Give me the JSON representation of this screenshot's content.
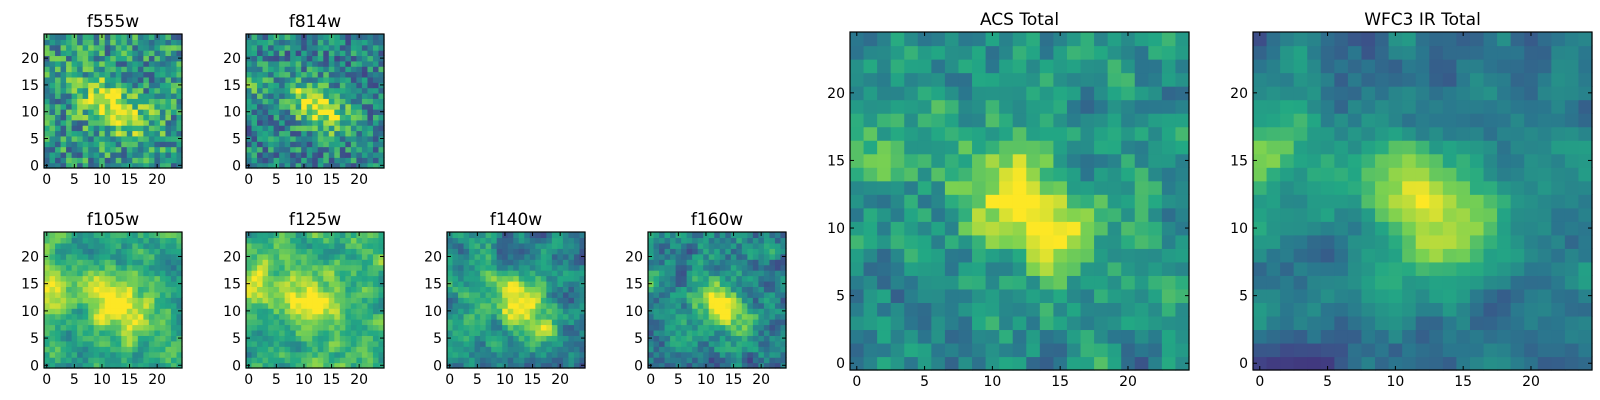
{
  "colormap": "viridis",
  "colors": {
    "cmap_stops": [
      "#440154",
      "#414487",
      "#2a788e",
      "#22a884",
      "#7ad151",
      "#fde725"
    ],
    "frame": "#000000",
    "background": "#ffffff"
  },
  "chart_data": [
    {
      "type": "heatmap",
      "title": "f555w",
      "grid_size": 25,
      "xlim": [
        0,
        24
      ],
      "ylim": [
        0,
        24
      ],
      "xticks": [
        0,
        5,
        10,
        15,
        20
      ],
      "yticks": [
        0,
        5,
        10,
        15,
        20
      ],
      "source": {
        "x": 12,
        "y": 11,
        "amplitude": 0.45,
        "width": 2.8,
        "elong": 1.8,
        "angle_deg": -35
      },
      "edge_blob": null,
      "noise": 0.55,
      "corr": 0.0,
      "seed": 11,
      "bias": 0.52
    },
    {
      "type": "heatmap",
      "title": "f814w",
      "grid_size": 25,
      "xlim": [
        0,
        24
      ],
      "ylim": [
        0,
        24
      ],
      "xticks": [
        0,
        5,
        10,
        15,
        20
      ],
      "yticks": [
        0,
        5,
        10,
        15,
        20
      ],
      "source": {
        "x": 12.5,
        "y": 11,
        "amplitude": 0.55,
        "width": 2.5,
        "elong": 1.8,
        "angle_deg": -35
      },
      "edge_blob": {
        "x": 0,
        "y": 15,
        "amplitude": 0.25,
        "width": 2
      },
      "noise": 0.5,
      "corr": 0.0,
      "seed": 23,
      "bias": 0.45
    },
    {
      "type": "heatmap",
      "title": "f105w",
      "grid_size": 25,
      "xlim": [
        0,
        24
      ],
      "ylim": [
        0,
        24
      ],
      "xticks": [
        0,
        5,
        10,
        15,
        20
      ],
      "yticks": [
        0,
        5,
        10,
        15,
        20
      ],
      "source": {
        "x": 13,
        "y": 11,
        "amplitude": 0.5,
        "width": 3,
        "elong": 1.5,
        "angle_deg": -45
      },
      "edge_blob": {
        "x": 0,
        "y": 14,
        "amplitude": 0.3,
        "width": 3
      },
      "noise": 0.45,
      "corr": 0.6,
      "seed": 37,
      "bias": 0.6
    },
    {
      "type": "heatmap",
      "title": "f125w",
      "grid_size": 25,
      "xlim": [
        0,
        24
      ],
      "ylim": [
        0,
        24
      ],
      "xticks": [
        0,
        5,
        10,
        15,
        20
      ],
      "yticks": [
        0,
        5,
        10,
        15,
        20
      ],
      "source": {
        "x": 11.5,
        "y": 12,
        "amplitude": 0.45,
        "width": 3,
        "elong": 1.5,
        "angle_deg": -50
      },
      "edge_blob": {
        "x": 0,
        "y": 15,
        "amplitude": 0.35,
        "width": 3
      },
      "noise": 0.45,
      "corr": 0.6,
      "seed": 41,
      "bias": 0.62
    },
    {
      "type": "heatmap",
      "title": "f140w",
      "grid_size": 25,
      "xlim": [
        0,
        24
      ],
      "ylim": [
        0,
        24
      ],
      "xticks": [
        0,
        5,
        10,
        15,
        20
      ],
      "yticks": [
        0,
        5,
        10,
        15,
        20
      ],
      "source": {
        "x": 13,
        "y": 11,
        "amplitude": 0.55,
        "width": 2.8,
        "elong": 1.5,
        "angle_deg": -40
      },
      "edge_blob": null,
      "noise": 0.5,
      "corr": 0.6,
      "seed": 53,
      "bias": 0.5
    },
    {
      "type": "heatmap",
      "title": "f160w",
      "grid_size": 25,
      "xlim": [
        0,
        24
      ],
      "ylim": [
        0,
        24
      ],
      "xticks": [
        0,
        5,
        10,
        15,
        20
      ],
      "yticks": [
        0,
        5,
        10,
        15,
        20
      ],
      "source": {
        "x": 12.5,
        "y": 11,
        "amplitude": 0.6,
        "width": 2.6,
        "elong": 1.5,
        "angle_deg": -45
      },
      "edge_blob": {
        "x": 0,
        "y": 15,
        "amplitude": 0.35,
        "width": 2
      },
      "noise": 0.5,
      "corr": 0.5,
      "seed": 67,
      "bias": 0.45
    },
    {
      "type": "heatmap",
      "title": "ACS Total",
      "grid_size": 25,
      "xlim": [
        0,
        24
      ],
      "ylim": [
        0,
        24
      ],
      "xticks": [
        0,
        5,
        10,
        15,
        20
      ],
      "yticks": [
        0,
        5,
        10,
        15,
        20
      ],
      "source": {
        "x": 12.5,
        "y": 11.5,
        "amplitude": 0.55,
        "width": 2.6,
        "elong": 1.7,
        "angle_deg": -40
      },
      "edge_blob": {
        "x": 0,
        "y": 15,
        "amplitude": 0.3,
        "width": 2
      },
      "noise": 0.42,
      "corr": 0.35,
      "seed": 79,
      "bias": 0.5
    },
    {
      "type": "heatmap",
      "title": "WFC3 IR Total",
      "grid_size": 25,
      "xlim": [
        0,
        24
      ],
      "ylim": [
        0,
        24
      ],
      "xticks": [
        0,
        5,
        10,
        15,
        20
      ],
      "yticks": [
        0,
        5,
        10,
        15,
        20
      ],
      "source": {
        "x": 12.5,
        "y": 11.5,
        "amplitude": 0.55,
        "width": 2.8,
        "elong": 1.4,
        "angle_deg": -45
      },
      "edge_blob": {
        "x": 0,
        "y": 15.5,
        "amplitude": 0.4,
        "width": 3
      },
      "noise": 0.33,
      "corr": 0.7,
      "seed": 97,
      "bias": 0.4
    }
  ]
}
